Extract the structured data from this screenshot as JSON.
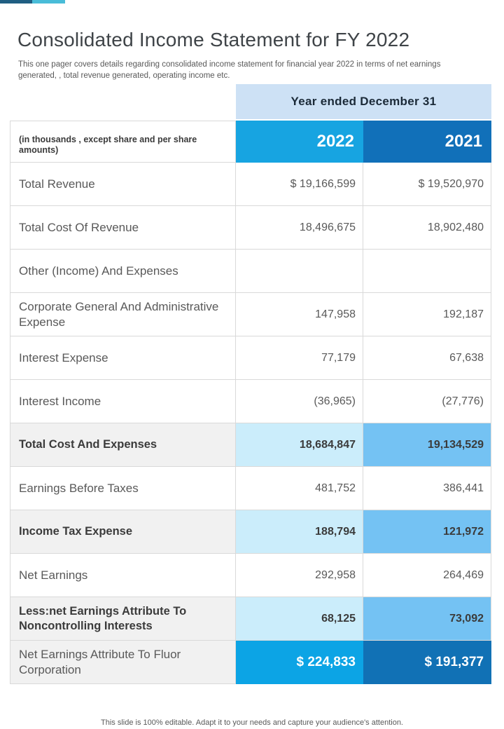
{
  "page": {
    "title": "Consolidated Income Statement for FY 2022",
    "subtitle": "This one pager covers details regarding consolidated income statement for financial year 2022 in terms of net earnings generated, , total revenue generated, operating income etc.",
    "footer": "This slide is 100% editable. Adapt it to your needs and capture your audience's attention."
  },
  "table": {
    "span_header": "Year ended December 31",
    "unit_note": "(in thousands , except share and per share amounts)",
    "col_2022": "2022",
    "col_2021": "2021",
    "rows": [
      {
        "label": "Total Revenue",
        "y2022": "$ 19,166,599",
        "y2021": "$ 19,520,970",
        "style": "normal"
      },
      {
        "label": "Total Cost Of Revenue",
        "y2022": "18,496,675",
        "y2021": "18,902,480",
        "style": "normal"
      },
      {
        "label": "Other (Income) And Expenses",
        "y2022": "",
        "y2021": "",
        "style": "normal"
      },
      {
        "label": "Corporate General And Administrative Expense",
        "y2022": "147,958",
        "y2021": "192,187",
        "style": "normal"
      },
      {
        "label": "Interest Expense",
        "y2022": "77,179",
        "y2021": "67,638",
        "style": "normal"
      },
      {
        "label": "Interest Income",
        "y2022": "(36,965)",
        "y2021": "(27,776)",
        "style": "normal"
      },
      {
        "label": "Total Cost And Expenses",
        "y2022": "18,684,847",
        "y2021": "19,134,529",
        "style": "highlight"
      },
      {
        "label": "Earnings Before Taxes",
        "y2022": "481,752",
        "y2021": "386,441",
        "style": "normal"
      },
      {
        "label": "Income Tax Expense",
        "y2022": "188,794",
        "y2021": "121,972",
        "style": "highlight"
      },
      {
        "label": "Net Earnings",
        "y2022": "292,958",
        "y2021": "264,469",
        "style": "normal"
      },
      {
        "label": "Less:net Earnings Attribute To Noncontrolling Interests",
        "y2022": "68,125",
        "y2021": "73,092",
        "style": "highlight"
      },
      {
        "label": "Net Earnings Attribute To Fluor Corporation",
        "y2022": "$ 224,833",
        "y2021": "$ 191,377",
        "style": "total"
      }
    ]
  },
  "colors": {
    "top-bar-dark": "#205E82",
    "top-bar-light": "#49BCD8",
    "band-bg": "#CDE1F5",
    "band-text": "#1B2A38",
    "header-2022-bg": "#17A4E1",
    "header-2021-bg": "#1170B9",
    "highlight-label-bg": "#F1F1F1",
    "highlight-2022-bg": "#CBEDFB",
    "highlight-2021-bg": "#74C2F3",
    "total-2022-bg": "#0CA4E5",
    "total-2021-bg": "#1171B5",
    "border-color": "#D9D9D9",
    "text-dark": "#3B3B3B",
    "text-gray": "#595959"
  }
}
